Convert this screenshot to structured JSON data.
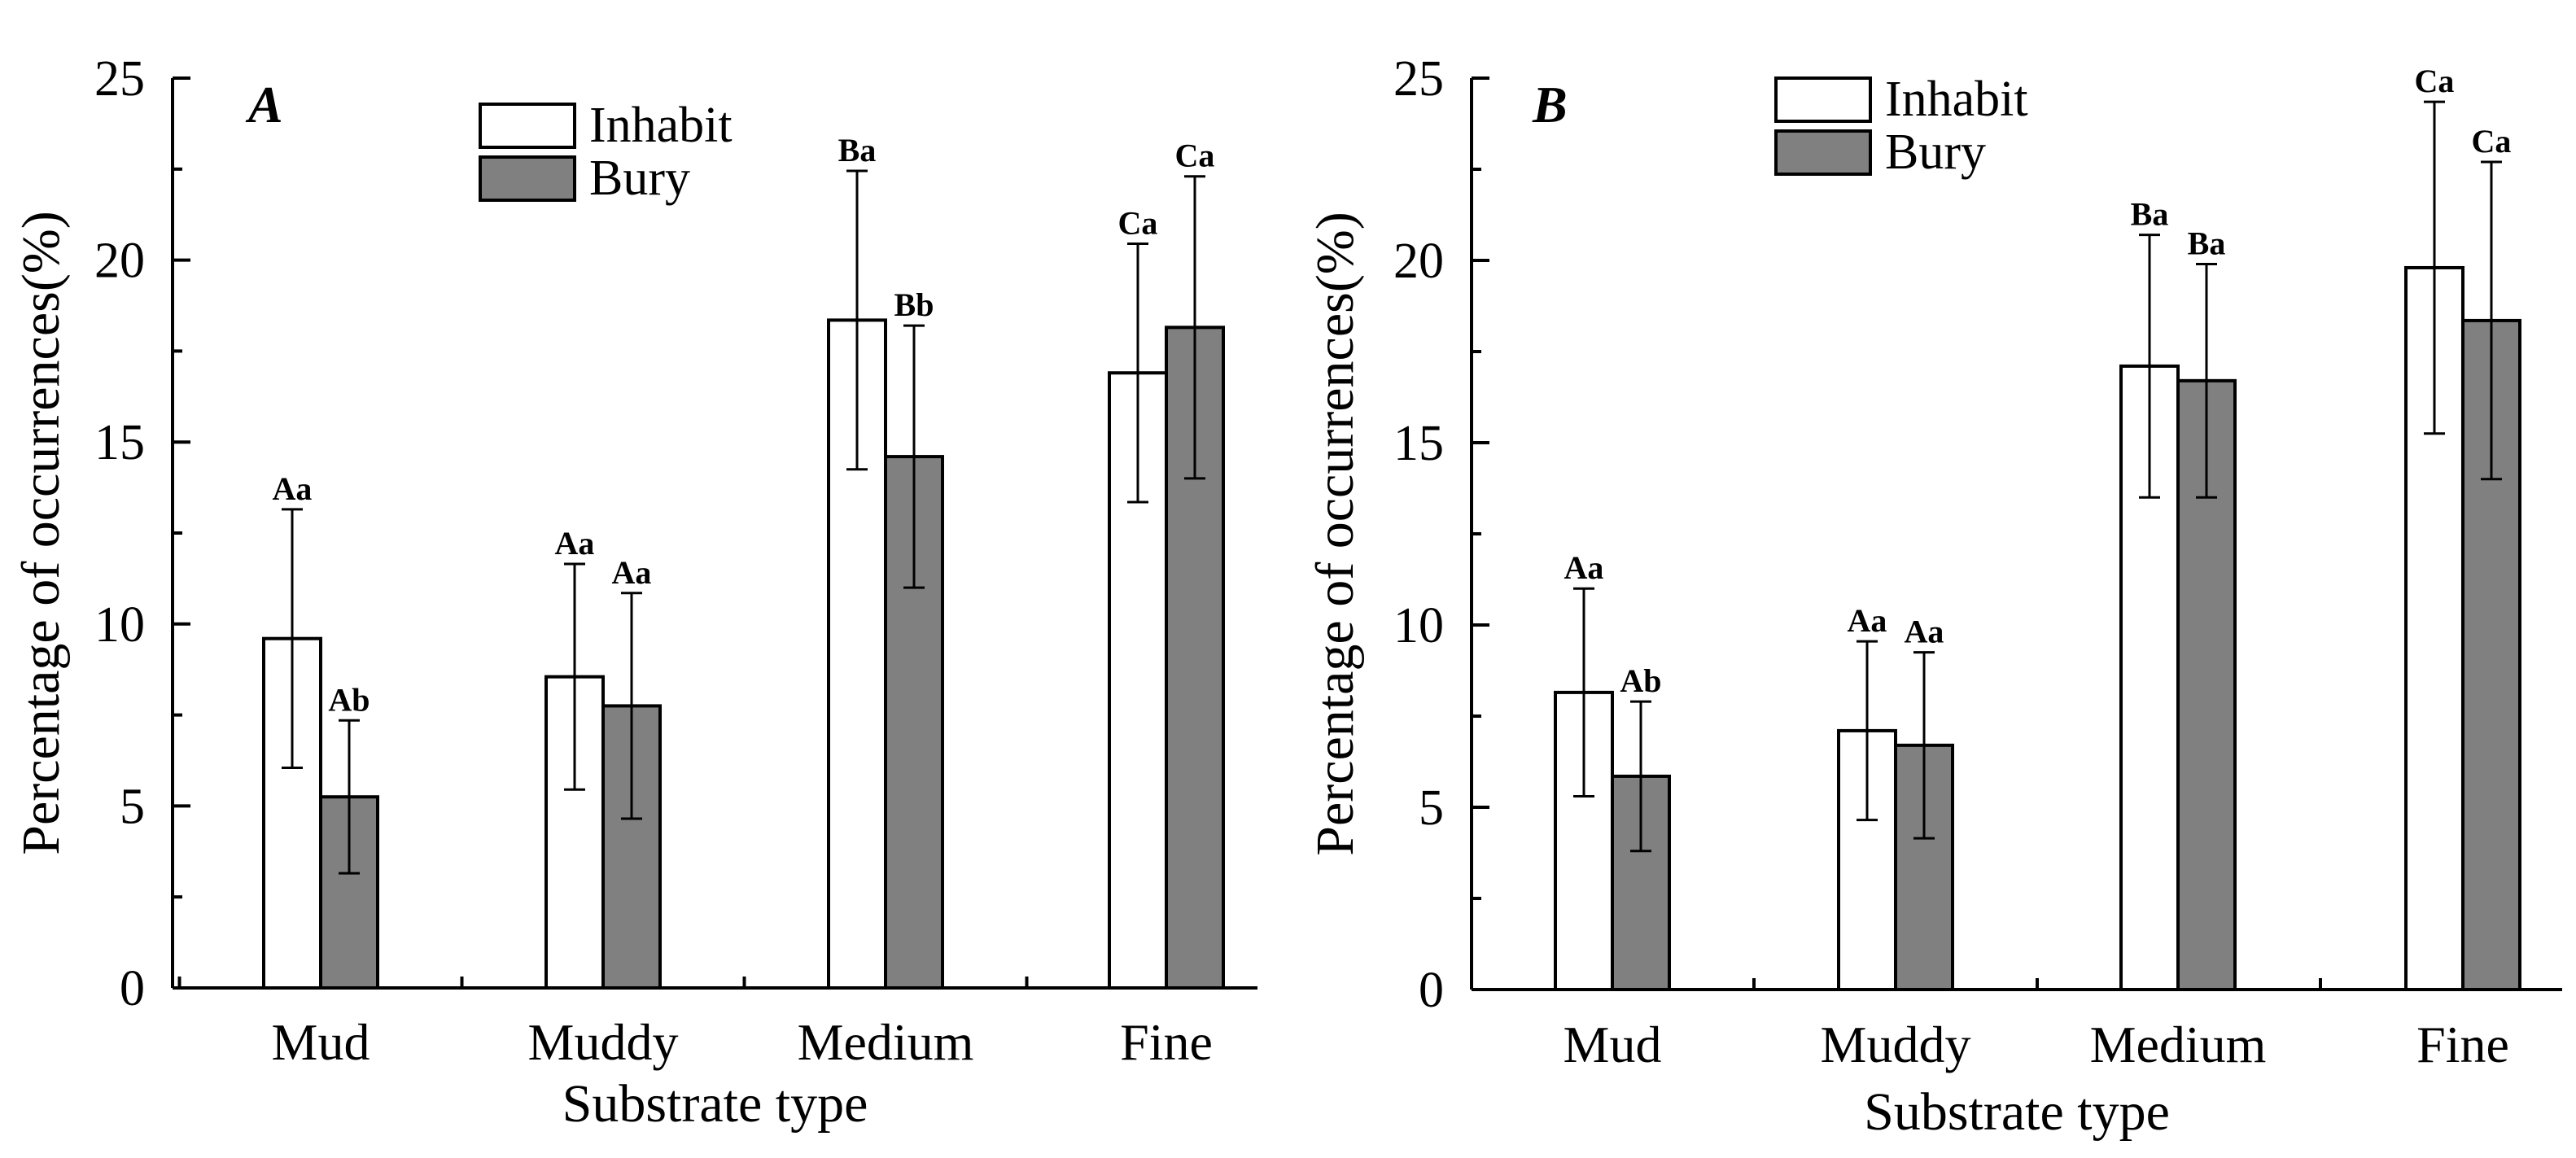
{
  "chart_data": [
    {
      "type": "bar",
      "panel": "A",
      "categories": [
        "Mud",
        "Muddy",
        "Medium",
        "Fine"
      ],
      "series": [
        {
          "name": "Inhabit",
          "color": "#ffffff",
          "values": [
            9.6,
            8.55,
            18.35,
            16.9
          ],
          "errors": [
            3.55,
            3.1,
            4.1,
            3.55
          ],
          "labels": [
            "Aa",
            "Aa",
            "Ba",
            "Ca"
          ]
        },
        {
          "name": "Bury",
          "color": "#808080",
          "values": [
            5.25,
            7.75,
            14.6,
            18.15
          ],
          "errors": [
            2.1,
            3.1,
            3.6,
            4.15
          ],
          "labels": [
            "Ab",
            "Aa",
            "Bb",
            "Ca"
          ]
        }
      ],
      "xlabel": "Substrate type",
      "ylabel": "Percentage of occurrences(%)",
      "ylim": [
        0,
        25
      ],
      "yticks": [
        "0",
        "5",
        "10",
        "15",
        "20",
        "25"
      ],
      "legend": "top-center",
      "grid": false
    },
    {
      "type": "bar",
      "panel": "B",
      "categories": [
        "Mud",
        "Muddy",
        "Medium",
        "Fine"
      ],
      "series": [
        {
          "name": "Inhabit",
          "color": "#ffffff",
          "values": [
            8.15,
            7.1,
            17.1,
            19.8
          ],
          "errors": [
            2.85,
            2.45,
            3.6,
            4.55
          ],
          "labels": [
            "Aa",
            "Aa",
            "Ba",
            "Ca"
          ]
        },
        {
          "name": "Bury",
          "color": "#808080",
          "values": [
            5.85,
            6.7,
            16.7,
            18.35
          ],
          "errors": [
            2.05,
            2.55,
            3.2,
            4.35
          ],
          "labels": [
            "Ab",
            "Aa",
            "Ba",
            "Ca"
          ]
        }
      ],
      "xlabel": "Substrate type",
      "ylabel": "Percentage of occurrences(%)",
      "ylim": [
        0,
        25
      ],
      "yticks": [
        "0",
        "5",
        "10",
        "15",
        "20",
        "25"
      ],
      "legend": "top-left",
      "grid": false
    }
  ]
}
